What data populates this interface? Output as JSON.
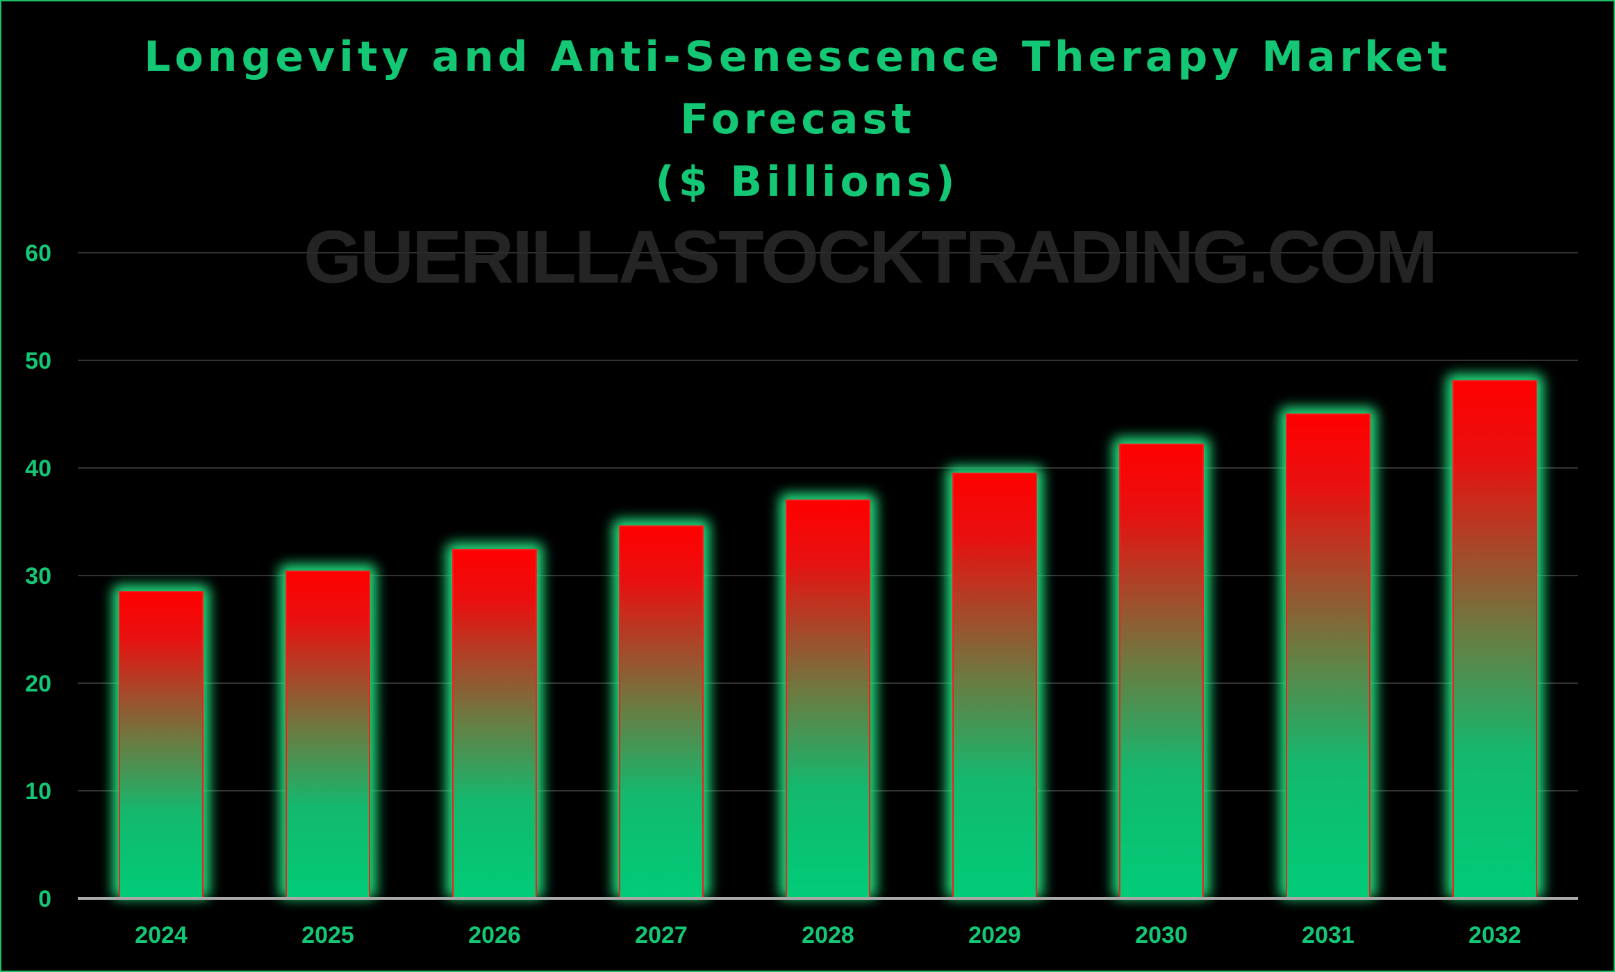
{
  "chart_data": {
    "type": "bar",
    "title_lines": [
      "Longevity and Anti-Senescence Therapy Market",
      "Forecast",
      "($ Billions)"
    ],
    "categories": [
      "2024",
      "2025",
      "2026",
      "2027",
      "2028",
      "2029",
      "2030",
      "2031",
      "2032"
    ],
    "values": [
      28.5,
      30.4,
      32.4,
      34.6,
      37.0,
      39.5,
      42.2,
      45.0,
      48.1
    ],
    "ylim": [
      0,
      60
    ],
    "yticks": [
      "0",
      "10",
      "20",
      "30",
      "40",
      "50",
      "60"
    ],
    "grid": true,
    "watermark": "GUERILLASTOCKTRADING.COM",
    "colors": {
      "background": "#000000",
      "text": "#13c774",
      "bar_top": "#ff0000",
      "bar_bottom": "#00cc77",
      "bar_glow": "#22ee88",
      "bar_outline": "#ff1a1a",
      "gridline": "#333333",
      "baseline": "#aaaaaa",
      "frame": "#1fbf6a",
      "watermark": "#2a2a2a"
    }
  }
}
